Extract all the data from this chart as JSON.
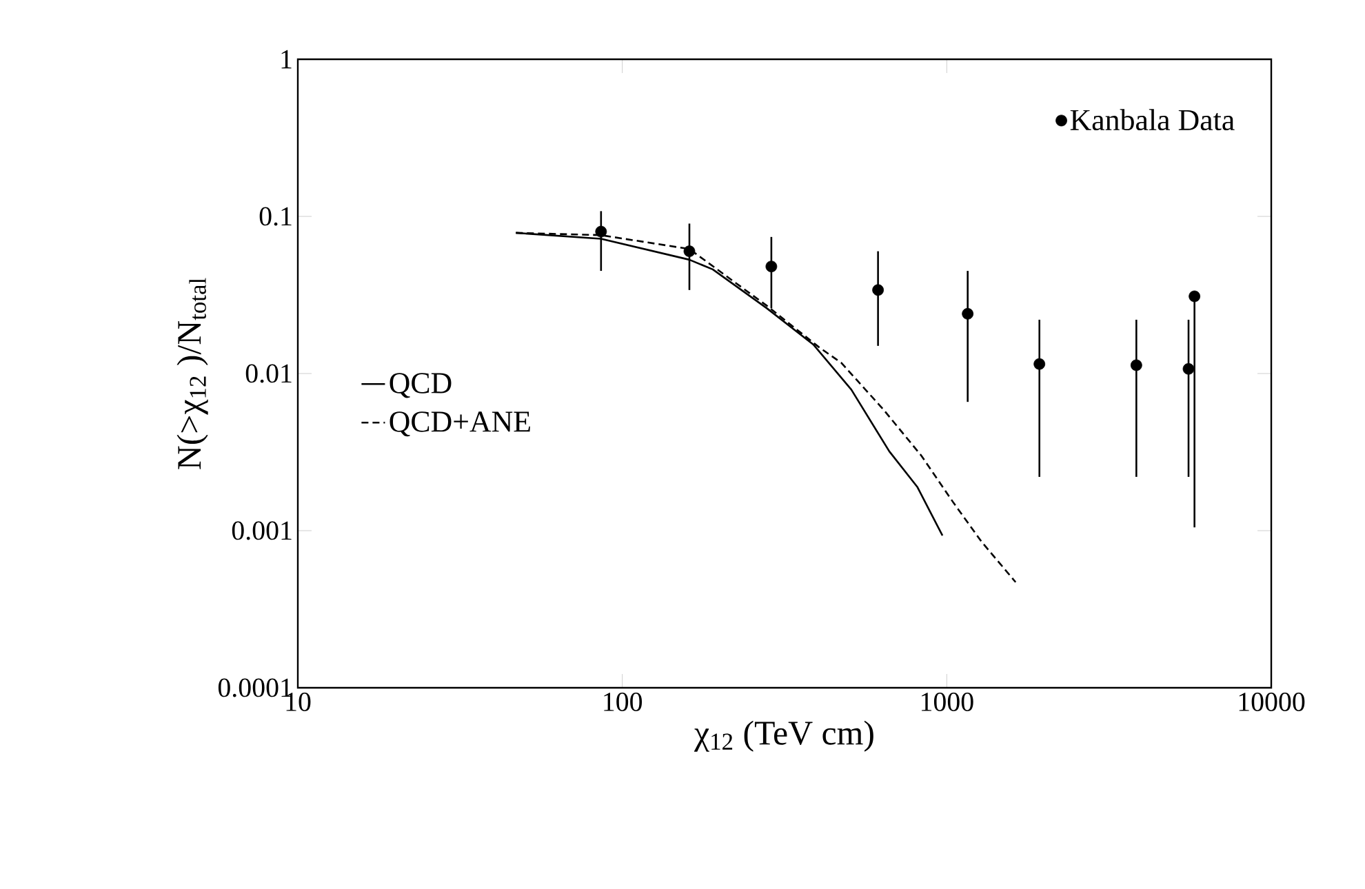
{
  "chart_data": {
    "type": "scatter",
    "xlabel": "χ$_{12}$   (TeV cm)",
    "ylabel": "N(>χ$_{12}$ )/N$_{total}$",
    "log": "xy",
    "xlim": [
      10,
      10000
    ],
    "xticks": [
      10,
      100,
      1000,
      10000
    ],
    "ylim": [
      0.0001,
      1
    ],
    "yticks": [
      0.0001,
      0.001,
      0.01,
      0.1,
      1
    ],
    "legend": "top right",
    "series": [
      {
        "name": "Kanbala Data",
        "color": "#000000",
        "x": [
          86,
          161,
          288,
          614,
          1160,
          1930,
          3840,
          5560,
          5800
        ],
        "values": [
          0.08,
          0.06,
          0.048,
          0.034,
          0.024,
          0.0115,
          0.0113,
          0.0107,
          0.031
        ],
        "errors": [
          [
            0.045,
            0.108
          ],
          [
            0.034,
            0.09
          ],
          [
            0.026,
            0.074
          ],
          [
            0.015,
            0.06
          ],
          [
            0.0066,
            0.045
          ],
          [
            0.0022,
            0.022
          ],
          [
            0.0022,
            0.022
          ],
          [
            0.0022,
            0.022
          ],
          [
            0.00105,
            0.031
          ]
        ]
      },
      {
        "name": "QCD",
        "type": "line",
        "color": "#000000",
        "line_style": "solid",
        "x": [
          47,
          86,
          161,
          190,
          279,
          388,
          508,
          665,
          811,
          970
        ],
        "values": [
          0.0786,
          0.072,
          0.053,
          0.046,
          0.026,
          0.0153,
          0.0079,
          0.0032,
          0.0019,
          0.00093
        ]
      },
      {
        "name": "QCD+ANE",
        "type": "line",
        "color": "#000000",
        "line_style": "dashed",
        "x": [
          47,
          86,
          161,
          279,
          404,
          473,
          638,
          835,
          1050,
          1280,
          1630
        ],
        "values": [
          0.0786,
          0.076,
          0.062,
          0.027,
          0.0147,
          0.0117,
          0.0059,
          0.003,
          0.0015,
          0.00085,
          0.00047
        ]
      }
    ]
  }
}
